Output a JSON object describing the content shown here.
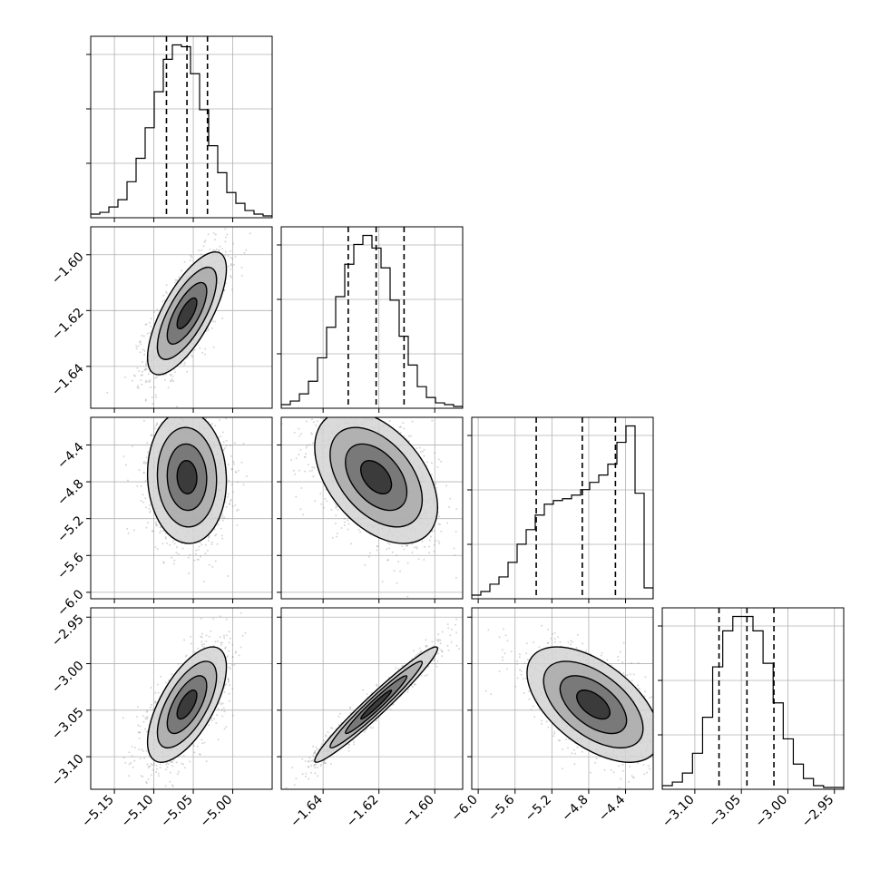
{
  "chart_data": {
    "type": "corner",
    "parameters": [
      {
        "range": [
          -5.18,
          -4.95
        ],
        "ticks": [
          -5.15,
          -5.1,
          -5.05,
          -5.0
        ],
        "tick_labels": [
          "−5.15",
          "−5.10",
          "−5.05",
          "−5.00"
        ]
      },
      {
        "range": [
          -1.655,
          -1.59
        ],
        "ticks": [
          -1.64,
          -1.62,
          -1.6
        ],
        "tick_labels": [
          "−1.64",
          "−1.62",
          "−1.60"
        ]
      },
      {
        "range": [
          -6.07,
          -4.1
        ],
        "ticks": [
          -6.0,
          -5.6,
          -5.2,
          -4.8,
          -4.4
        ],
        "tick_labels": [
          "−6.0",
          "−5.6",
          "−5.2",
          "−4.8",
          "−4.4"
        ]
      },
      {
        "range": [
          -3.135,
          -2.94
        ],
        "ticks": [
          -3.1,
          -3.05,
          -3.0,
          -2.95
        ],
        "tick_labels": [
          "−3.10",
          "−3.05",
          "−3.00",
          "−2.95"
        ]
      }
    ],
    "histograms": [
      {
        "edges_range": [
          -5.18,
          -4.95
        ],
        "counts": [
          2,
          3,
          6,
          10,
          20,
          33,
          50,
          70,
          88,
          96,
          95,
          80,
          60,
          40,
          25,
          14,
          8,
          4,
          2,
          1
        ]
      },
      {
        "edges_range": [
          -1.655,
          -1.59
        ],
        "counts": [
          2,
          4,
          8,
          15,
          28,
          45,
          62,
          80,
          91,
          96,
          89,
          78,
          60,
          40,
          24,
          12,
          6,
          3,
          2,
          1
        ]
      },
      {
        "edges_range": [
          -6.07,
          -4.1
        ],
        "counts": [
          2,
          4,
          8,
          12,
          20,
          30,
          38,
          46,
          52,
          54,
          55,
          57,
          60,
          64,
          68,
          74,
          86,
          95,
          58,
          6
        ]
      },
      {
        "edges_range": [
          -3.135,
          -2.94
        ],
        "counts": [
          2,
          4,
          9,
          20,
          40,
          68,
          88,
          96,
          96,
          88,
          70,
          48,
          28,
          14,
          6,
          2,
          1,
          1
        ]
      }
    ],
    "quantiles": [
      [
        -5.084,
        -5.058,
        -5.032
      ],
      [
        -1.631,
        -1.621,
        -1.611
      ],
      [
        -5.37,
        -4.87,
        -4.51
      ],
      [
        -3.074,
        -3.044,
        -3.015
      ]
    ],
    "pairs": [
      {
        "x": 0,
        "y": 1,
        "center": [
          -5.058,
          -1.621
        ],
        "sd": [
          0.025,
          0.011
        ],
        "rho": 0.72
      },
      {
        "x": 0,
        "y": 2,
        "center": [
          -5.058,
          -4.75
        ],
        "sd": [
          0.025,
          0.36
        ],
        "rho": -0.05
      },
      {
        "x": 1,
        "y": 2,
        "center": [
          -1.621,
          -4.75
        ],
        "sd": [
          0.011,
          0.36
        ],
        "rho": -0.45
      },
      {
        "x": 0,
        "y": 3,
        "center": [
          -5.058,
          -3.044
        ],
        "sd": [
          0.025,
          0.031
        ],
        "rho": 0.65
      },
      {
        "x": 1,
        "y": 3,
        "center": [
          -1.621,
          -3.044
        ],
        "sd": [
          0.011,
          0.031
        ],
        "rho": 0.97
      },
      {
        "x": 2,
        "y": 3,
        "center": [
          -4.75,
          -3.044
        ],
        "sd": [
          0.36,
          0.031
        ],
        "rho": -0.55
      }
    ],
    "grid": true,
    "title": "",
    "xlabel": "",
    "ylabel": ""
  }
}
